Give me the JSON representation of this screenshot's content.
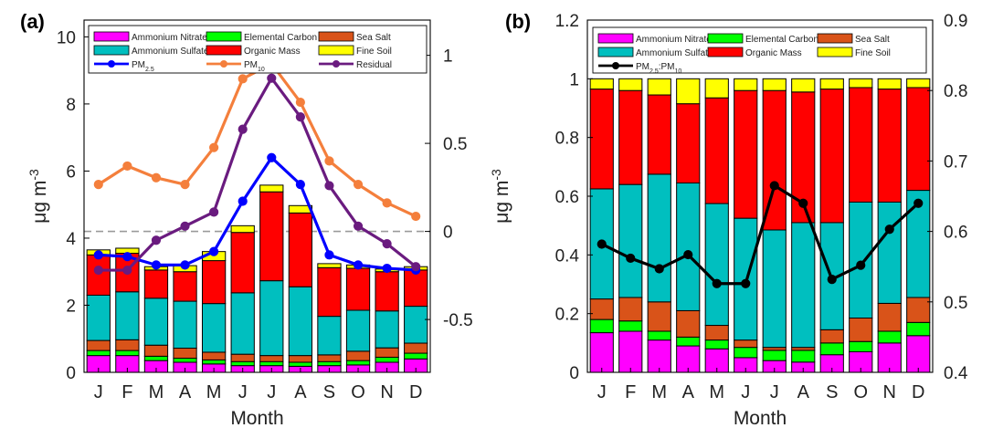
{
  "chart_data": [
    {
      "panel": "(a)",
      "type": "bar",
      "stacked": true,
      "categories": [
        "J",
        "F",
        "M",
        "A",
        "M",
        "J",
        "J",
        "A",
        "S",
        "O",
        "N",
        "D"
      ],
      "xlabel": "Month",
      "ylabel": "μg m⁻³",
      "ylim": [
        0,
        10.5
      ],
      "yticks": [
        "0",
        "2",
        "4",
        "6",
        "8",
        "10"
      ],
      "y2lim": [
        -0.8,
        1.2
      ],
      "y2ticks": [
        "-0.5",
        "0",
        "0.5",
        "1"
      ],
      "zero_line_y2": 0,
      "legend_position": "top",
      "series": [
        {
          "name": "Ammonium Nitrate",
          "color": "#ff00ff",
          "values": [
            0.5,
            0.5,
            0.35,
            0.3,
            0.25,
            0.2,
            0.2,
            0.18,
            0.2,
            0.22,
            0.3,
            0.4
          ]
        },
        {
          "name": "Elemental Carbon",
          "color": "#00ff00",
          "values": [
            0.15,
            0.15,
            0.13,
            0.12,
            0.12,
            0.12,
            0.12,
            0.12,
            0.12,
            0.13,
            0.15,
            0.17
          ]
        },
        {
          "name": "Sea Salt",
          "color": "#d95319",
          "values": [
            0.3,
            0.32,
            0.33,
            0.3,
            0.23,
            0.22,
            0.18,
            0.2,
            0.2,
            0.28,
            0.28,
            0.3
          ]
        },
        {
          "name": "Ammonium Sulfate",
          "color": "#00bfbf",
          "values": [
            1.35,
            1.43,
            1.4,
            1.4,
            1.45,
            1.83,
            2.23,
            2.05,
            1.15,
            1.22,
            1.1,
            1.1
          ]
        },
        {
          "name": "Organic Mass",
          "color": "#ff0000",
          "values": [
            1.2,
            1.15,
            0.84,
            0.88,
            1.28,
            1.8,
            2.65,
            2.2,
            1.45,
            1.25,
            1.17,
            1.08
          ]
        },
        {
          "name": "Fine Soil",
          "color": "#ffff00",
          "values": [
            0.15,
            0.15,
            0.1,
            0.18,
            0.27,
            0.2,
            0.2,
            0.22,
            0.12,
            0.1,
            0.08,
            0.1
          ]
        }
      ],
      "lines": [
        {
          "name": "PM2.5",
          "color": "#0000ff",
          "axis": "left",
          "values": [
            3.5,
            3.45,
            3.2,
            3.2,
            3.6,
            5.1,
            6.4,
            5.6,
            3.5,
            3.2,
            3.1,
            3.05
          ]
        },
        {
          "name": "PM10",
          "color": "#f47f3c",
          "axis": "left",
          "values": [
            5.6,
            6.15,
            5.8,
            5.6,
            6.7,
            8.75,
            9.2,
            8.05,
            6.3,
            5.6,
            5.05,
            4.65
          ]
        },
        {
          "name": "Residual",
          "color": "#6a1b7f",
          "axis": "right",
          "values": [
            -0.22,
            -0.22,
            -0.05,
            0.03,
            0.11,
            0.58,
            0.87,
            0.65,
            0.26,
            0.03,
            -0.07,
            -0.2
          ]
        }
      ]
    },
    {
      "panel": "(b)",
      "type": "bar",
      "stacked": true,
      "categories": [
        "J",
        "F",
        "M",
        "A",
        "M",
        "J",
        "J",
        "A",
        "S",
        "O",
        "N",
        "D"
      ],
      "xlabel": "Month",
      "ylabel": "μg m⁻³",
      "ylim": [
        0,
        1.2
      ],
      "yticks": [
        "0",
        "0.2",
        "0.4",
        "0.6",
        "0.8",
        "1",
        "1.2"
      ],
      "y2lim": [
        0.4,
        0.9
      ],
      "y2ticks": [
        "0.4",
        "0.5",
        "0.6",
        "0.7",
        "0.8",
        "0.9"
      ],
      "legend_position": "top",
      "series": [
        {
          "name": "Ammonium Nitrate",
          "color": "#ff00ff",
          "values": [
            0.135,
            0.14,
            0.11,
            0.09,
            0.08,
            0.05,
            0.04,
            0.035,
            0.06,
            0.07,
            0.1,
            0.125
          ]
        },
        {
          "name": "Elemental Carbon",
          "color": "#00ff00",
          "values": [
            0.045,
            0.035,
            0.03,
            0.03,
            0.03,
            0.035,
            0.035,
            0.04,
            0.04,
            0.035,
            0.04,
            0.045
          ]
        },
        {
          "name": "Sea Salt",
          "color": "#d95319",
          "values": [
            0.07,
            0.08,
            0.1,
            0.09,
            0.05,
            0.025,
            0.01,
            0.01,
            0.045,
            0.08,
            0.095,
            0.085
          ]
        },
        {
          "name": "Ammonium Sulfate",
          "color": "#00bfbf",
          "values": [
            0.375,
            0.385,
            0.435,
            0.435,
            0.415,
            0.415,
            0.4,
            0.425,
            0.365,
            0.395,
            0.345,
            0.365
          ]
        },
        {
          "name": "Organic Mass",
          "color": "#ff0000",
          "values": [
            0.34,
            0.32,
            0.27,
            0.27,
            0.36,
            0.435,
            0.475,
            0.445,
            0.455,
            0.39,
            0.385,
            0.35
          ]
        },
        {
          "name": "Fine Soil",
          "color": "#ffff00",
          "values": [
            0.035,
            0.04,
            0.055,
            0.085,
            0.065,
            0.04,
            0.04,
            0.045,
            0.035,
            0.03,
            0.035,
            0.03
          ]
        }
      ],
      "lines": [
        {
          "name": "PM2.5:PM10",
          "color": "#000000",
          "axis": "right",
          "values": [
            0.582,
            0.562,
            0.547,
            0.567,
            0.526,
            0.526,
            0.665,
            0.64,
            0.532,
            0.552,
            0.603,
            0.64
          ]
        }
      ]
    }
  ]
}
